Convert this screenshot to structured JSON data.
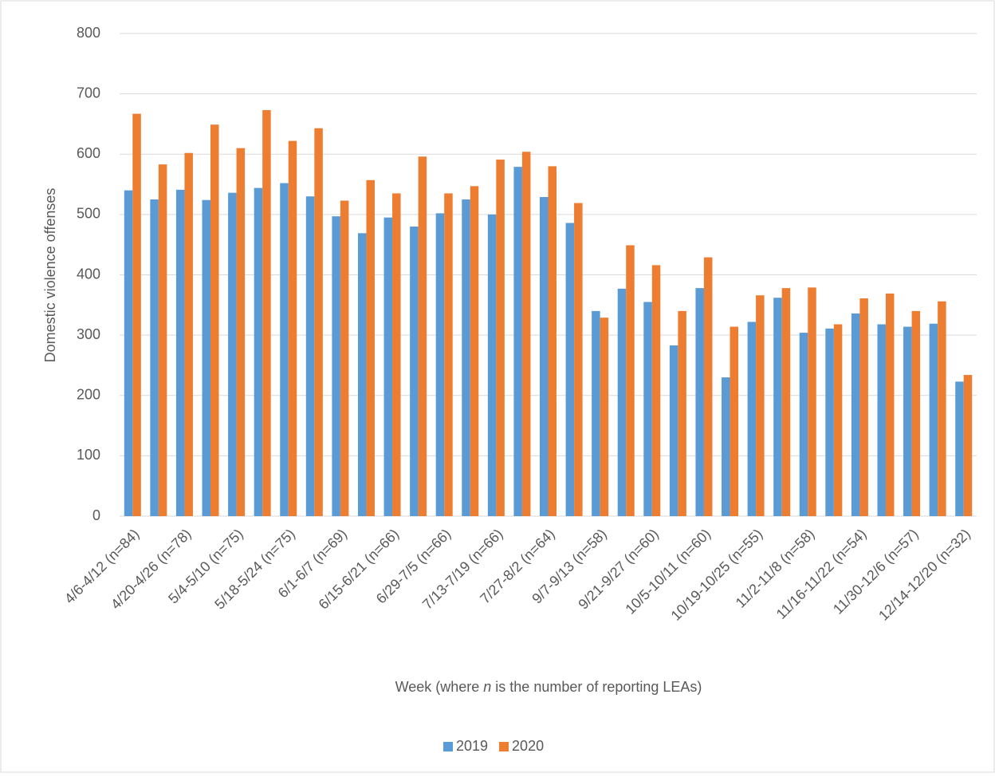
{
  "chart_data": {
    "type": "bar",
    "y_label": "Domestic violence offenses",
    "x_label": [
      "Week (where ",
      "n",
      " is the number of reporting LEAs)"
    ],
    "categories": [
      "4/6-4/12 (n=84)",
      null,
      "4/20-4/26 (n=78)",
      null,
      "5/4-5/10 (n=75)",
      null,
      "5/18-5/24 (n=75)",
      null,
      "6/1-6/7 (n=69)",
      null,
      "6/15-6/21 (n=66)",
      null,
      "6/29-7/5 (n=66)",
      null,
      "7/13-7/19 (n=66)",
      null,
      "7/27-8/2 (n=64)",
      null,
      "9/7-9/13 (n=58)",
      null,
      "9/21-9/27 (n=60)",
      null,
      "10/5-10/11 (n=60)",
      null,
      "10/19-10/25 (n=55)",
      null,
      "11/2-11/8 (n=58)",
      null,
      "11/16-11/22 (n=54)",
      null,
      "11/30-12/6 (n=57)",
      null,
      "12/14-12/20 (n=32)"
    ],
    "series": [
      {
        "name": "2019",
        "color": "#5b9bd5",
        "values": [
          540,
          525,
          541,
          524,
          536,
          544,
          552,
          530,
          497,
          469,
          495,
          480,
          502,
          525,
          500,
          579,
          529,
          486,
          340,
          377,
          355,
          283,
          378,
          230,
          322,
          362,
          304,
          311,
          336,
          318,
          314,
          319,
          223
        ]
      },
      {
        "name": "2020",
        "color": "#ed7d31",
        "values": [
          667,
          583,
          602,
          649,
          610,
          673,
          622,
          643,
          523,
          557,
          535,
          596,
          535,
          547,
          591,
          604,
          580,
          519,
          329,
          449,
          416,
          340,
          429,
          314,
          366,
          378,
          379,
          318,
          361,
          369,
          340,
          356,
          234
        ]
      }
    ],
    "ylim": [
      0,
      800
    ],
    "yticks": [
      0,
      100,
      200,
      300,
      400,
      500,
      600,
      700,
      800
    ],
    "grid": true,
    "legend": "bottom"
  }
}
